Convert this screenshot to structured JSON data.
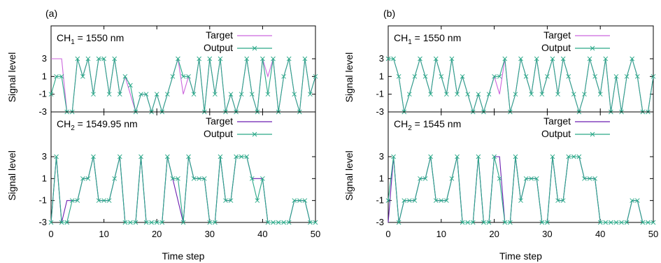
{
  "chart_data": [
    {
      "type": "line",
      "panel_label": "(a)",
      "xlabel": "Time step",
      "ylabel": "Signal level",
      "xlim": [
        0,
        50
      ],
      "ylim": [
        -3,
        3
      ],
      "x_ticks": [
        "0",
        "10",
        "20",
        "30",
        "40",
        "50"
      ],
      "y_ticks": [
        "-3",
        "-1",
        "1",
        "3"
      ],
      "subplots": [
        {
          "channel_label": "CH₁ = 1550 nm",
          "channel_prefix": "CH",
          "channel_sub": "1",
          "channel_suffix": " = 1550 nm",
          "series": [
            {
              "name": "Target",
              "color": "#cc66dd",
              "values": [
                3,
                3,
                3,
                -3,
                -3,
                3,
                1,
                3,
                -1,
                3,
                3,
                -1,
                3,
                -1,
                1,
                -1,
                -3,
                -1,
                -1,
                -3,
                -1,
                -3,
                -1,
                1,
                3,
                -1,
                1,
                -1,
                3,
                -3,
                3,
                -1,
                3,
                -3,
                -1,
                -3,
                -1,
                3,
                -1,
                -3,
                3,
                1,
                3,
                -3,
                1,
                3,
                -1,
                -3,
                3,
                -1,
                1
              ]
            },
            {
              "name": "Output",
              "color": "#2aa888",
              "values": [
                -1,
                1,
                1,
                -3,
                -3,
                3,
                1,
                3,
                -1,
                3,
                3,
                -1,
                3,
                -1,
                1,
                0,
                -3,
                -1,
                -1,
                -3,
                -1,
                -3,
                -1,
                1,
                3,
                1,
                1,
                -1,
                3,
                -3,
                3,
                -1,
                3,
                -3,
                -1,
                -3,
                -1,
                3,
                -1,
                -3,
                3,
                -1,
                3,
                -3,
                1,
                3,
                -1,
                -3,
                3,
                -1,
                1
              ]
            }
          ]
        },
        {
          "channel_label": "CH₂ = 1549.95 nm",
          "channel_prefix": "CH",
          "channel_sub": "2",
          "channel_suffix": " = 1549.95 nm",
          "series": [
            {
              "name": "Target",
              "color": "#6a1fb0",
              "values": [
                -3,
                3,
                -3,
                -1,
                -1,
                -1,
                1,
                1,
                3,
                -1,
                -1,
                -1,
                1,
                3,
                -3,
                -3,
                -3,
                3,
                -3,
                -3,
                -3,
                -3,
                3,
                1,
                -1,
                -3,
                3,
                1,
                1,
                1,
                -3,
                -3,
                3,
                -1,
                -1,
                3,
                3,
                3,
                1,
                1,
                1,
                -3,
                -3,
                -3,
                -3,
                -3,
                -1,
                -1,
                -1,
                -3,
                -3
              ]
            },
            {
              "name": "Output",
              "color": "#2aa888",
              "values": [
                -3,
                3,
                -3,
                -3,
                -1,
                -1,
                1,
                1,
                3,
                -1,
                -1,
                -1,
                1,
                3,
                -3,
                -3,
                -3,
                3,
                -3,
                -3,
                -3,
                -3,
                3,
                1,
                1,
                -3,
                3,
                1,
                1,
                1,
                -3,
                -3,
                3,
                -1,
                -1,
                3,
                3,
                3,
                1,
                -1,
                1,
                -3,
                -3,
                -3,
                -3,
                -3,
                -1,
                -1,
                -1,
                -3,
                -3
              ]
            }
          ]
        }
      ],
      "legend": [
        "Target",
        "Output"
      ]
    },
    {
      "type": "line",
      "panel_label": "(b)",
      "xlabel": "Time step",
      "ylabel": "Signal level",
      "xlim": [
        0,
        50
      ],
      "ylim": [
        -3,
        3
      ],
      "x_ticks": [
        "0",
        "10",
        "20",
        "30",
        "40",
        "50"
      ],
      "y_ticks": [
        "-3",
        "-1",
        "1",
        "3"
      ],
      "subplots": [
        {
          "channel_label": "CH₁ = 1550 nm",
          "channel_prefix": "CH",
          "channel_sub": "1",
          "channel_suffix": " = 1550 nm",
          "series": [
            {
              "name": "Target",
              "color": "#cc66dd",
              "values": [
                3,
                3,
                1,
                -3,
                -1,
                1,
                3,
                1,
                -1,
                3,
                1,
                -1,
                3,
                -1,
                1,
                -1,
                -3,
                -1,
                -3,
                -1,
                1,
                -1,
                3,
                -3,
                -1,
                3,
                1,
                -1,
                3,
                -1,
                1,
                3,
                -1,
                3,
                1,
                -1,
                -3,
                -1,
                3,
                1,
                -1,
                3,
                -3,
                1,
                -3,
                1,
                3,
                1,
                -3,
                -3,
                1
              ]
            },
            {
              "name": "Output",
              "color": "#2aa888",
              "values": [
                3,
                3,
                1,
                -3,
                -1,
                1,
                3,
                1,
                -1,
                3,
                1,
                -1,
                3,
                -1,
                1,
                -1,
                -3,
                -1,
                -3,
                -1,
                1,
                1,
                3,
                -3,
                -1,
                3,
                1,
                -1,
                3,
                -1,
                1,
                3,
                -1,
                3,
                1,
                -1,
                -3,
                -1,
                3,
                1,
                -1,
                3,
                -3,
                1,
                -3,
                1,
                3,
                1,
                -3,
                -3,
                1
              ]
            }
          ]
        },
        {
          "channel_label": "CH₂ = 1545 nm",
          "channel_prefix": "CH",
          "channel_sub": "2",
          "channel_suffix": " = 1545 nm",
          "series": [
            {
              "name": "Target",
              "color": "#6a1fb0",
              "values": [
                -3,
                3,
                -3,
                -1,
                -1,
                -1,
                1,
                1,
                3,
                -1,
                -1,
                -1,
                1,
                3,
                -3,
                -3,
                -3,
                3,
                -3,
                -3,
                3,
                3,
                -3,
                -3,
                3,
                -1,
                1,
                1,
                1,
                -3,
                -3,
                3,
                -1,
                -1,
                3,
                3,
                3,
                1,
                1,
                1,
                -3,
                -3,
                -3,
                -3,
                -3,
                -3,
                -1,
                -1,
                -3,
                -3,
                -3
              ]
            },
            {
              "name": "Output",
              "color": "#2aa888",
              "values": [
                -1,
                3,
                -3,
                -1,
                -1,
                -1,
                1,
                1,
                3,
                -1,
                -1,
                -1,
                1,
                3,
                -3,
                -3,
                -3,
                3,
                -3,
                -3,
                3,
                1,
                -3,
                -3,
                3,
                -1,
                1,
                1,
                1,
                -3,
                -3,
                3,
                -1,
                -1,
                3,
                3,
                3,
                1,
                1,
                1,
                -3,
                -3,
                -3,
                -3,
                -3,
                -3,
                -1,
                -1,
                -3,
                -3,
                -3
              ]
            }
          ]
        }
      ],
      "legend": [
        "Target",
        "Output"
      ]
    }
  ]
}
